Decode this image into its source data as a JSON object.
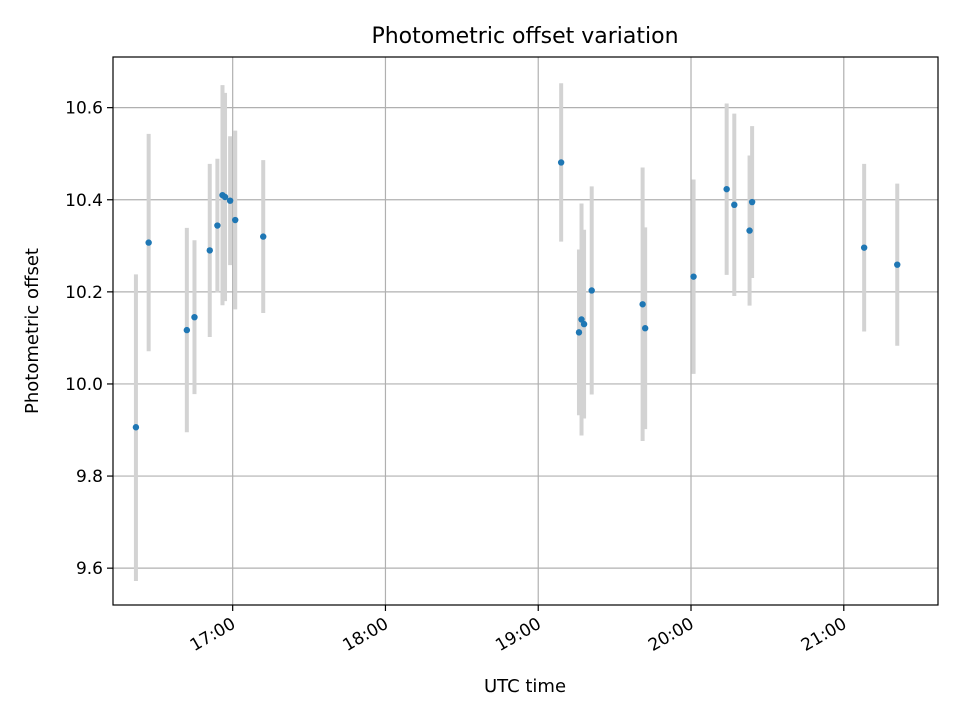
{
  "chart_data": {
    "type": "scatter",
    "title": "Photometric offset variation",
    "xlabel": "UTC time",
    "ylabel": "Photometric offset",
    "grid": true,
    "xlim": [
      "16:13",
      "21:37"
    ],
    "ylim": [
      9.52,
      10.71
    ],
    "xticks": [
      "17:00",
      "18:00",
      "19:00",
      "20:00",
      "21:00"
    ],
    "yticks": [
      9.6,
      9.8,
      10.0,
      10.2,
      10.4,
      10.6
    ],
    "ytick_labels": [
      "9.6",
      "9.8",
      "10.0",
      "10.2",
      "10.4",
      "10.6"
    ],
    "point_color": "#1f77b4",
    "errorbar_color": "#d3d3d3",
    "points": [
      {
        "x": "16:22",
        "y": 9.906,
        "ylow": 9.572,
        "yhigh": 10.238
      },
      {
        "x": "16:27",
        "y": 10.307,
        "ylow": 10.071,
        "yhigh": 10.543
      },
      {
        "x": "16:42",
        "y": 10.117,
        "ylow": 9.895,
        "yhigh": 10.339
      },
      {
        "x": "16:45",
        "y": 10.145,
        "ylow": 9.978,
        "yhigh": 10.312
      },
      {
        "x": "16:51",
        "y": 10.29,
        "ylow": 10.102,
        "yhigh": 10.478
      },
      {
        "x": "16:54",
        "y": 10.344,
        "ylow": 10.199,
        "yhigh": 10.489
      },
      {
        "x": "16:56",
        "y": 10.41,
        "ylow": 10.171,
        "yhigh": 10.649
      },
      {
        "x": "16:57",
        "y": 10.406,
        "ylow": 10.18,
        "yhigh": 10.632
      },
      {
        "x": "16:59",
        "y": 10.398,
        "ylow": 10.258,
        "yhigh": 10.538
      },
      {
        "x": "17:01",
        "y": 10.356,
        "ylow": 10.162,
        "yhigh": 10.55
      },
      {
        "x": "17:12",
        "y": 10.32,
        "ylow": 10.154,
        "yhigh": 10.486
      },
      {
        "x": "19:09",
        "y": 10.481,
        "ylow": 10.309,
        "yhigh": 10.653
      },
      {
        "x": "19:16",
        "y": 10.112,
        "ylow": 9.932,
        "yhigh": 10.292
      },
      {
        "x": "19:17",
        "y": 10.14,
        "ylow": 9.888,
        "yhigh": 10.392
      },
      {
        "x": "19:18",
        "y": 10.13,
        "ylow": 9.925,
        "yhigh": 10.335
      },
      {
        "x": "19:21",
        "y": 10.203,
        "ylow": 9.977,
        "yhigh": 10.429
      },
      {
        "x": "19:41",
        "y": 10.173,
        "ylow": 9.876,
        "yhigh": 10.47
      },
      {
        "x": "19:42",
        "y": 10.121,
        "ylow": 9.902,
        "yhigh": 10.34
      },
      {
        "x": "20:01",
        "y": 10.233,
        "ylow": 10.022,
        "yhigh": 10.444
      },
      {
        "x": "20:14",
        "y": 10.423,
        "ylow": 10.237,
        "yhigh": 10.609
      },
      {
        "x": "20:17",
        "y": 10.389,
        "ylow": 10.191,
        "yhigh": 10.587
      },
      {
        "x": "20:23",
        "y": 10.333,
        "ylow": 10.17,
        "yhigh": 10.496
      },
      {
        "x": "20:24",
        "y": 10.395,
        "ylow": 10.23,
        "yhigh": 10.56
      },
      {
        "x": "21:08",
        "y": 10.296,
        "ylow": 10.114,
        "yhigh": 10.478
      },
      {
        "x": "21:21",
        "y": 10.259,
        "ylow": 10.083,
        "yhigh": 10.435
      }
    ]
  }
}
